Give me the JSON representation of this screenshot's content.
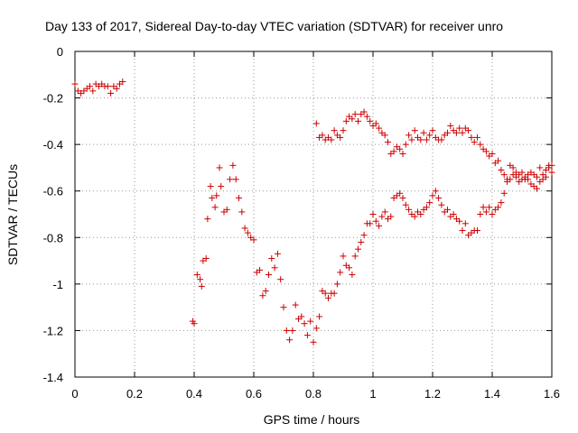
{
  "chart_data": {
    "type": "scatter",
    "title": "Day 133 of 2017, Sidereal Day-to-day VTEC variation (SDTVAR) for receiver unro",
    "xlabel": "GPS time / hours",
    "ylabel": "SDTVAR / TECUs",
    "xlim": [
      0,
      1.6
    ],
    "ylim": [
      -1.4,
      0
    ],
    "xticks": [
      0,
      0.2,
      0.4,
      0.6,
      0.8,
      1,
      1.2,
      1.4,
      1.6
    ],
    "xtick_labels": [
      "0",
      "0.2",
      "0.4",
      "0.6",
      "0.8",
      "1",
      "1.2",
      "1.4",
      "1.6"
    ],
    "yticks": [
      0,
      -0.2,
      -0.4,
      -0.6,
      -0.8,
      -1,
      -1.2,
      -1.4
    ],
    "ytick_labels": [
      "0",
      "-0.2",
      "-0.4",
      "-0.6",
      "-0.8",
      "-1",
      "-1.2",
      "-1.4"
    ],
    "grid": true,
    "marker": "+",
    "color": "#cc0000",
    "series": [
      {
        "name": "SDTVAR",
        "x": [
          0.0,
          0.01,
          0.02,
          0.03,
          0.04,
          0.05,
          0.06,
          0.07,
          0.08,
          0.09,
          0.1,
          0.11,
          0.12,
          0.13,
          0.14,
          0.15,
          0.16,
          0.395,
          0.4,
          0.41,
          0.42,
          0.425,
          0.43,
          0.44,
          0.445,
          0.455,
          0.46,
          0.47,
          0.475,
          0.485,
          0.49,
          0.5,
          0.51,
          0.52,
          0.53,
          0.54,
          0.55,
          0.56,
          0.57,
          0.58,
          0.59,
          0.6,
          0.61,
          0.62,
          0.63,
          0.64,
          0.65,
          0.66,
          0.67,
          0.68,
          0.69,
          0.7,
          0.71,
          0.72,
          0.73,
          0.74,
          0.75,
          0.76,
          0.77,
          0.78,
          0.79,
          0.8,
          0.81,
          0.82,
          0.83,
          0.84,
          0.85,
          0.86,
          0.87,
          0.88,
          0.89,
          0.9,
          0.91,
          0.92,
          0.93,
          0.94,
          0.95,
          0.96,
          0.97,
          0.98,
          0.99,
          1.0,
          1.01,
          1.02,
          1.03,
          1.04,
          1.05,
          1.06,
          1.07,
          1.08,
          1.09,
          1.1,
          1.11,
          1.12,
          1.13,
          1.14,
          1.15,
          1.16,
          1.17,
          1.18,
          1.19,
          1.2,
          1.21,
          1.22,
          1.23,
          1.24,
          1.25,
          1.26,
          1.27,
          1.28,
          1.29,
          1.3,
          1.31,
          1.32,
          1.33,
          1.34,
          1.35,
          1.36,
          1.37,
          1.38,
          1.39,
          1.4,
          1.41,
          1.42,
          1.43,
          1.44,
          1.45,
          1.46,
          1.47,
          1.48,
          1.49,
          1.5,
          1.51,
          1.52,
          1.53,
          1.54,
          1.55,
          1.56,
          1.57,
          1.58,
          1.59,
          1.6,
          0.81,
          0.82,
          0.83,
          0.84,
          0.85,
          0.86,
          0.87,
          0.88,
          0.89,
          0.9,
          0.91,
          0.92,
          0.93,
          0.94,
          0.95,
          0.96,
          0.97,
          0.98,
          0.99,
          1.0,
          1.01,
          1.02,
          1.03,
          1.04,
          1.05,
          1.06,
          1.07,
          1.08,
          1.09,
          1.1,
          1.11,
          1.12,
          1.13,
          1.14,
          1.15,
          1.16,
          1.17,
          1.18,
          1.19,
          1.2,
          1.21,
          1.22,
          1.23,
          1.24,
          1.25,
          1.26,
          1.27,
          1.28,
          1.29,
          1.3,
          1.31,
          1.32,
          1.33,
          1.34,
          1.35,
          1.36,
          1.37,
          1.38,
          1.39,
          1.4,
          1.41,
          1.42,
          1.43,
          1.44,
          1.45,
          1.46,
          1.47,
          1.48,
          1.49,
          1.5,
          1.51,
          1.52,
          1.53,
          1.54,
          1.55,
          1.56,
          1.57,
          1.58,
          1.59,
          1.6
        ],
        "y": [
          -0.14,
          -0.17,
          -0.18,
          -0.17,
          -0.16,
          -0.15,
          -0.17,
          -0.14,
          -0.15,
          -0.14,
          -0.15,
          -0.15,
          -0.18,
          -0.15,
          -0.16,
          -0.14,
          -0.13,
          -1.16,
          -1.17,
          -0.96,
          -0.98,
          -1.01,
          -0.9,
          -0.89,
          -0.72,
          -0.58,
          -0.63,
          -0.67,
          -0.62,
          -0.5,
          -0.58,
          -0.69,
          -0.68,
          -0.55,
          -0.49,
          -0.55,
          -0.63,
          -0.69,
          -0.76,
          -0.78,
          -0.8,
          -0.81,
          -0.95,
          -0.94,
          -1.05,
          -1.03,
          -0.96,
          -0.89,
          -0.93,
          -0.87,
          -0.98,
          -1.1,
          -1.2,
          -1.24,
          -1.2,
          -1.09,
          -1.15,
          -1.14,
          -1.17,
          -1.22,
          -1.16,
          -1.25,
          -1.19,
          -1.14,
          -1.03,
          -1.04,
          -1.06,
          -1.04,
          -1.04,
          -1.0,
          -0.95,
          -0.88,
          -0.92,
          -0.93,
          -0.96,
          -0.88,
          -0.85,
          -0.82,
          -0.79,
          -0.74,
          -0.74,
          -0.7,
          -0.73,
          -0.75,
          -0.71,
          -0.69,
          -0.72,
          -0.71,
          -0.63,
          -0.62,
          -0.61,
          -0.63,
          -0.66,
          -0.68,
          -0.7,
          -0.71,
          -0.69,
          -0.7,
          -0.68,
          -0.67,
          -0.65,
          -0.62,
          -0.6,
          -0.63,
          -0.66,
          -0.69,
          -0.68,
          -0.71,
          -0.7,
          -0.72,
          -0.73,
          -0.77,
          -0.74,
          -0.79,
          -0.78,
          -0.77,
          -0.77,
          -0.7,
          -0.67,
          -0.69,
          -0.67,
          -0.7,
          -0.68,
          -0.67,
          -0.65,
          -0.61,
          -0.56,
          -0.55,
          -0.53,
          -0.54,
          -0.56,
          -0.55,
          -0.54,
          -0.55,
          -0.57,
          -0.58,
          -0.59,
          -0.56,
          -0.55,
          -0.54,
          -0.49,
          -0.52,
          -0.31,
          -0.37,
          -0.36,
          -0.38,
          -0.37,
          -0.38,
          -0.34,
          -0.36,
          -0.37,
          -0.34,
          -0.3,
          -0.28,
          -0.29,
          -0.27,
          -0.3,
          -0.27,
          -0.26,
          -0.28,
          -0.3,
          -0.32,
          -0.31,
          -0.33,
          -0.35,
          -0.36,
          -0.39,
          -0.44,
          -0.43,
          -0.41,
          -0.42,
          -0.44,
          -0.4,
          -0.36,
          -0.38,
          -0.34,
          -0.37,
          -0.38,
          -0.35,
          -0.38,
          -0.36,
          -0.34,
          -0.37,
          -0.38,
          -0.38,
          -0.36,
          -0.35,
          -0.32,
          -0.34,
          -0.35,
          -0.33,
          -0.35,
          -0.33,
          -0.34,
          -0.37,
          -0.39,
          -0.37,
          -0.4,
          -0.42,
          -0.43,
          -0.45,
          -0.44,
          -0.48,
          -0.47,
          -0.51,
          -0.53,
          -0.55,
          -0.49,
          -0.5,
          -0.52,
          -0.53,
          -0.52,
          -0.55,
          -0.53,
          -0.52,
          -0.53,
          -0.54,
          -0.5,
          -0.53,
          -0.51,
          -0.5,
          -0.49
        ]
      }
    ]
  }
}
